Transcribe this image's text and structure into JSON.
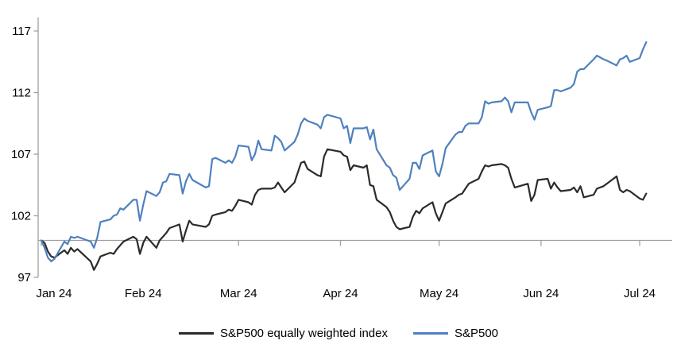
{
  "chart_data": {
    "type": "line",
    "title": "",
    "xlabel": "",
    "ylabel": "",
    "ylim": [
      97,
      117
    ],
    "y_ticks": [
      97,
      102,
      107,
      112,
      117
    ],
    "x_tick_labels": [
      "Jan 24",
      "Feb 24",
      "Mar 24",
      "Apr 24",
      "May 24",
      "Jun 24",
      "Jul 24"
    ],
    "baseline_value": 100,
    "grid": false,
    "legend_position": "bottom-center",
    "axis_color": "#a0a0a0",
    "dates": [
      "01-01",
      "01-02",
      "01-03",
      "01-04",
      "01-05",
      "01-08",
      "01-09",
      "01-10",
      "01-11",
      "01-12",
      "01-16",
      "01-17",
      "01-18",
      "01-19",
      "01-22",
      "01-23",
      "01-24",
      "01-25",
      "01-26",
      "01-29",
      "01-30",
      "01-31",
      "02-01",
      "02-02",
      "02-05",
      "02-06",
      "02-07",
      "02-08",
      "02-09",
      "02-12",
      "02-13",
      "02-14",
      "02-15",
      "02-16",
      "02-20",
      "02-21",
      "02-22",
      "02-23",
      "02-26",
      "02-27",
      "02-28",
      "02-29",
      "03-01",
      "03-04",
      "03-05",
      "03-06",
      "03-07",
      "03-08",
      "03-11",
      "03-12",
      "03-13",
      "03-14",
      "03-15",
      "03-18",
      "03-19",
      "03-20",
      "03-21",
      "03-22",
      "03-25",
      "03-26",
      "03-27",
      "03-28",
      "04-01",
      "04-02",
      "04-03",
      "04-04",
      "04-05",
      "04-08",
      "04-09",
      "04-10",
      "04-11",
      "04-12",
      "04-15",
      "04-16",
      "04-17",
      "04-18",
      "04-19",
      "04-22",
      "04-23",
      "04-24",
      "04-25",
      "04-26",
      "04-29",
      "04-30",
      "05-01",
      "05-02",
      "05-03",
      "05-06",
      "05-07",
      "05-08",
      "05-09",
      "05-10",
      "05-13",
      "05-14",
      "05-15",
      "05-16",
      "05-17",
      "05-20",
      "05-21",
      "05-22",
      "05-23",
      "05-24",
      "05-28",
      "05-29",
      "05-30",
      "05-31",
      "06-03",
      "06-04",
      "06-05",
      "06-06",
      "06-07",
      "06-10",
      "06-11",
      "06-12",
      "06-13",
      "06-14",
      "06-17",
      "06-18",
      "06-20",
      "06-21",
      "06-24",
      "06-25",
      "06-26",
      "06-27",
      "06-28",
      "07-01",
      "07-02",
      "07-03"
    ],
    "series": [
      {
        "name": "S&P500 equally weighted index",
        "color": "#2b2b2b",
        "values": [
          100,
          99.8,
          99.1,
          98.7,
          98.6,
          99.2,
          98.9,
          99.4,
          99.1,
          99.3,
          98.3,
          97.6,
          98.1,
          98.7,
          99.0,
          98.9,
          99.3,
          99.6,
          99.9,
          100.3,
          100.1,
          98.9,
          99.8,
          100.3,
          99.4,
          100.0,
          100.3,
          100.6,
          101.0,
          101.3,
          99.9,
          100.8,
          101.6,
          101.3,
          101.1,
          101.3,
          102.0,
          102.1,
          102.3,
          102.5,
          102.4,
          102.8,
          103.3,
          103.1,
          102.9,
          103.7,
          104.1,
          104.2,
          104.2,
          104.3,
          104.7,
          104.3,
          103.9,
          104.7,
          105.5,
          106.3,
          106.4,
          105.8,
          105.3,
          105.2,
          106.8,
          107.4,
          107.2,
          106.9,
          106.8,
          105.7,
          106.1,
          105.9,
          106.1,
          104.5,
          104.4,
          103.3,
          102.7,
          102.3,
          101.6,
          101.1,
          100.9,
          101.1,
          101.9,
          102.4,
          102.2,
          102.6,
          103.1,
          102.2,
          101.6,
          102.3,
          103.0,
          103.5,
          103.7,
          103.8,
          104.2,
          104.6,
          105.0,
          105.6,
          106.1,
          106.0,
          106.1,
          106.2,
          106.1,
          105.9,
          105.0,
          104.3,
          104.6,
          103.2,
          103.7,
          104.9,
          105.0,
          104.2,
          104.7,
          104.3,
          104.0,
          104.1,
          104.3,
          103.9,
          104.4,
          103.5,
          103.7,
          104.2,
          104.4,
          104.6,
          105.2,
          104.1,
          103.9,
          104.1,
          104.0,
          103.4,
          103.3,
          103.8
        ]
      },
      {
        "name": "S&P500",
        "color": "#4f81bd",
        "values": [
          100,
          99.4,
          98.6,
          98.3,
          98.5,
          99.9,
          99.7,
          100.3,
          100.2,
          100.3,
          99.9,
          99.4,
          100.2,
          101.5,
          101.7,
          102.0,
          102.1,
          102.6,
          102.5,
          103.3,
          103.3,
          101.6,
          102.9,
          104.0,
          103.6,
          103.9,
          104.7,
          104.8,
          105.4,
          105.3,
          103.8,
          104.8,
          105.4,
          104.9,
          104.3,
          104.4,
          106.6,
          106.7,
          106.3,
          106.5,
          106.3,
          106.8,
          107.7,
          107.6,
          106.5,
          107.0,
          108.1,
          107.4,
          107.3,
          108.5,
          108.3,
          108.0,
          107.3,
          108.0,
          108.6,
          109.5,
          109.9,
          109.7,
          109.4,
          109.1,
          110.0,
          110.2,
          109.9,
          109.1,
          109.3,
          107.9,
          109.1,
          109.1,
          109.2,
          108.2,
          109.0,
          107.4,
          106.1,
          105.9,
          105.3,
          105.1,
          104.1,
          105.0,
          106.3,
          106.3,
          105.8,
          106.9,
          107.3,
          105.6,
          105.2,
          106.2,
          107.5,
          108.6,
          108.8,
          108.8,
          109.3,
          109.5,
          109.5,
          110.0,
          111.3,
          111.1,
          111.2,
          111.3,
          111.6,
          111.3,
          110.4,
          111.2,
          111.2,
          110.4,
          109.8,
          110.6,
          110.8,
          110.9,
          112.2,
          112.2,
          112.1,
          112.4,
          112.7,
          113.7,
          113.9,
          113.9,
          114.7,
          115.0,
          114.7,
          114.6,
          114.2,
          114.7,
          114.8,
          115.0,
          114.5,
          114.8,
          115.5,
          116.1
        ]
      }
    ]
  }
}
